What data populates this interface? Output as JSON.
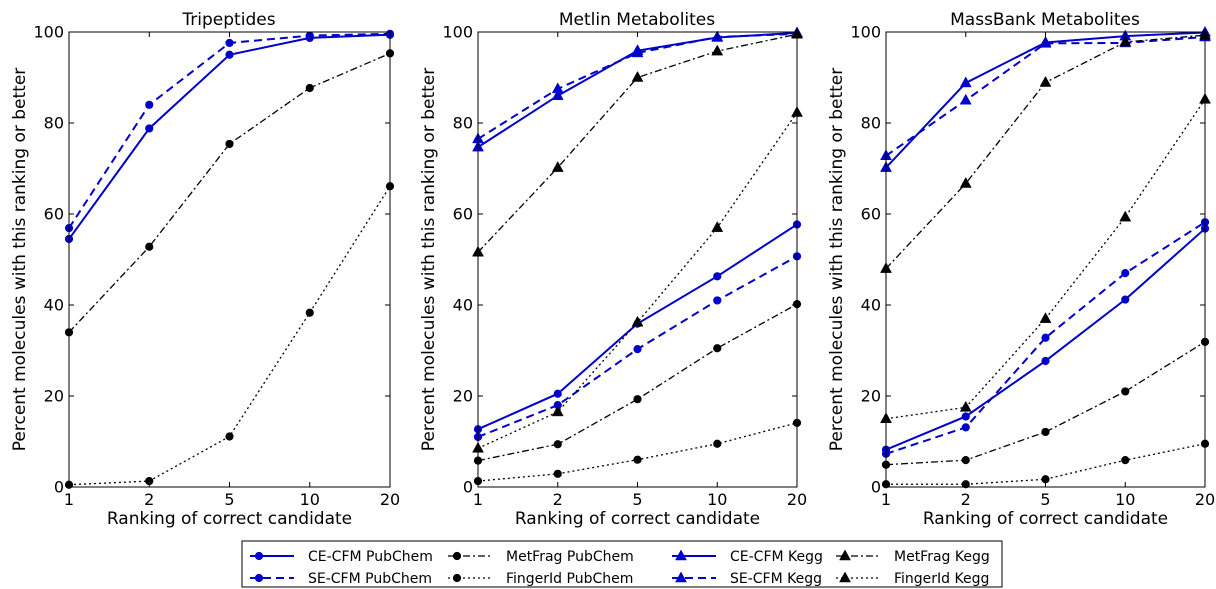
{
  "chart_data": [
    {
      "type": "line",
      "title": "Tripeptides",
      "xlabel": "Ranking of correct candidate",
      "ylabel": "Percent molecules with this ranking or better",
      "categories": [
        "1",
        "2",
        "5",
        "10",
        "20"
      ],
      "ylim": [
        0,
        100
      ],
      "yticks": [
        "0",
        "20",
        "40",
        "60",
        "80",
        "100"
      ],
      "grid": false,
      "series": [
        {
          "name": "CE-CFM PubChem",
          "values": [
            54.5,
            78.8,
            95.0,
            98.7,
            99.4
          ]
        },
        {
          "name": "SE-CFM PubChem",
          "values": [
            56.9,
            84.0,
            97.6,
            99.2,
            99.6
          ]
        },
        {
          "name": "MetFrag PubChem",
          "values": [
            34.0,
            52.8,
            75.4,
            87.7,
            95.3
          ]
        },
        {
          "name": "FingerId PubChem",
          "values": [
            0.5,
            1.3,
            11.1,
            38.3,
            66.1
          ]
        }
      ]
    },
    {
      "type": "line",
      "title": "Metlin Metabolites",
      "xlabel": "Ranking of correct candidate",
      "ylabel": "Percent molecules with this ranking or better",
      "categories": [
        "1",
        "2",
        "5",
        "10",
        "20"
      ],
      "ylim": [
        0,
        100
      ],
      "yticks": [
        "0",
        "20",
        "40",
        "60",
        "80",
        "100"
      ],
      "grid": false,
      "series": [
        {
          "name": "CE-CFM PubChem",
          "values": [
            12.7,
            20.5,
            35.9,
            46.3,
            57.7
          ]
        },
        {
          "name": "SE-CFM PubChem",
          "values": [
            11.0,
            18.0,
            30.3,
            41.0,
            50.7
          ]
        },
        {
          "name": "MetFrag PubChem",
          "values": [
            5.8,
            9.4,
            19.3,
            30.5,
            40.2
          ]
        },
        {
          "name": "FingerId PubChem",
          "values": [
            1.3,
            2.9,
            6.0,
            9.5,
            14.1
          ]
        },
        {
          "name": "CE-CFM Kegg",
          "values": [
            74.7,
            86.0,
            95.9,
            98.8,
            99.8
          ]
        },
        {
          "name": "SE-CFM Kegg",
          "values": [
            76.5,
            87.5,
            95.4,
            98.9,
            99.6
          ]
        },
        {
          "name": "MetFrag Kegg",
          "values": [
            51.6,
            70.2,
            90.0,
            95.8,
            99.5
          ]
        },
        {
          "name": "FingerId Kegg",
          "values": [
            8.5,
            16.5,
            36.2,
            57.0,
            82.3
          ]
        }
      ]
    },
    {
      "type": "line",
      "title": "MassBank Metabolites",
      "xlabel": "Ranking of correct candidate",
      "ylabel": "Percent molecules with this ranking or better",
      "categories": [
        "1",
        "2",
        "5",
        "10",
        "20"
      ],
      "ylim": [
        0,
        100
      ],
      "yticks": [
        "0",
        "20",
        "40",
        "60",
        "80",
        "100"
      ],
      "grid": false,
      "series": [
        {
          "name": "CE-CFM PubChem",
          "values": [
            8.2,
            15.5,
            27.7,
            41.2,
            56.8
          ]
        },
        {
          "name": "SE-CFM PubChem",
          "values": [
            7.3,
            13.1,
            32.8,
            47.0,
            58.2
          ]
        },
        {
          "name": "MetFrag PubChem",
          "values": [
            4.9,
            5.9,
            12.1,
            21.0,
            31.9
          ]
        },
        {
          "name": "FingerId PubChem",
          "values": [
            0.6,
            0.6,
            1.7,
            5.9,
            9.5
          ]
        },
        {
          "name": "CE-CFM Kegg",
          "values": [
            70.2,
            88.8,
            97.7,
            99.1,
            99.9
          ]
        },
        {
          "name": "SE-CFM Kegg",
          "values": [
            72.8,
            85.0,
            97.5,
            97.6,
            98.9
          ]
        },
        {
          "name": "MetFrag Kegg",
          "values": [
            48.0,
            66.7,
            88.9,
            97.8,
            99.3
          ]
        },
        {
          "name": "FingerId Kegg",
          "values": [
            15.0,
            17.5,
            37.0,
            59.3,
            85.2
          ]
        }
      ]
    }
  ],
  "legend": {
    "placement": "bottom-center",
    "ncol": 4,
    "entries": [
      {
        "label": "CE-CFM PubChem",
        "color": "#0000cc",
        "dash": "solid",
        "marker": "circle"
      },
      {
        "label": "SE-CFM PubChem",
        "color": "#0000cc",
        "dash": "dashed",
        "marker": "circle"
      },
      {
        "label": "MetFrag PubChem",
        "color": "#000000",
        "dash": "dashdot",
        "marker": "circle"
      },
      {
        "label": "FingerId PubChem",
        "color": "#000000",
        "dash": "dotted",
        "marker": "circle"
      },
      {
        "label": "CE-CFM Kegg",
        "color": "#0000cc",
        "dash": "solid",
        "marker": "triangle"
      },
      {
        "label": "SE-CFM Kegg",
        "color": "#0000cc",
        "dash": "dashed",
        "marker": "triangle"
      },
      {
        "label": "MetFrag Kegg",
        "color": "#000000",
        "dash": "dashdot",
        "marker": "triangle"
      },
      {
        "label": "FingerId Kegg",
        "color": "#000000",
        "dash": "dotted",
        "marker": "triangle"
      }
    ]
  }
}
